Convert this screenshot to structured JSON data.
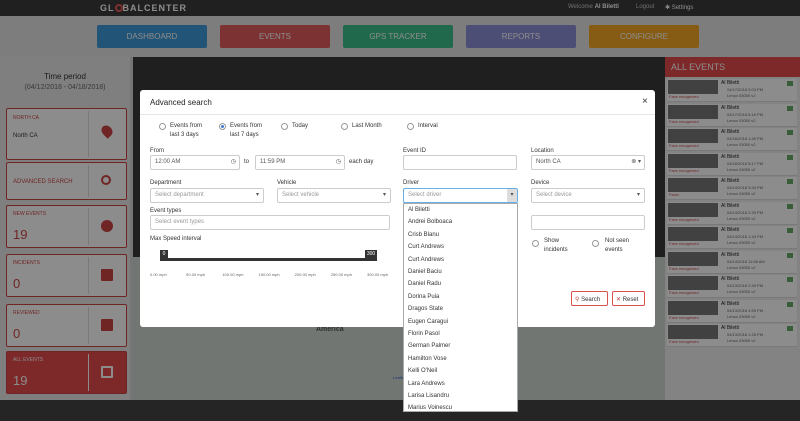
{
  "header": {
    "logo_left": "GL",
    "logo_right": "BALCENTER",
    "welcome": "Welcome",
    "user": "Al Biletti",
    "logout": "Logout",
    "settings": "Settings"
  },
  "nav": [
    "DASHBOARD",
    "EVENTS",
    "GPS TRACKER",
    "REPORTS",
    "CONFIGURE"
  ],
  "sidebar": {
    "time_period": "Time period",
    "range": "(04/12/2018 - 04/18/2018)",
    "location_title": "NORTH CA",
    "location_value": "North CA",
    "advanced_search": "ADVANCED SEARCH",
    "counters": [
      {
        "label": "NEW EVENTS",
        "value": "19"
      },
      {
        "label": "INCIDENTS",
        "value": "0"
      },
      {
        "label": "REVIEWED",
        "value": "0"
      },
      {
        "label": "ALL EVENTS",
        "value": "19"
      }
    ]
  },
  "map": {
    "label": "America",
    "attribution": "Leaflet"
  },
  "modal": {
    "title": "Advanced search",
    "periods": [
      {
        "line1": "Events from",
        "line2": "last 3 days"
      },
      {
        "line1": "Events from",
        "line2": "last 7 days"
      },
      {
        "line1": "Today"
      },
      {
        "line1": "Last Month"
      },
      {
        "line1": "Interval"
      }
    ],
    "from_label": "From",
    "from_value": "12:00 AM",
    "to_label": "to",
    "to_value": "11:59 PM",
    "each_day": "each day",
    "event_id_label": "Event ID",
    "location_label": "Location",
    "location_value": "North CA",
    "department_label": "Department",
    "department_placeholder": "Select department",
    "vehicle_label": "Vehicle",
    "vehicle_placeholder": "Select vehicle",
    "driver_label": "Driver",
    "driver_placeholder": "Select driver",
    "device_label": "Device",
    "device_placeholder": "Select device",
    "event_types_label": "Event types",
    "event_types_placeholder": "Select event types",
    "speed_label": "Max Speed interval",
    "speed_min": "0",
    "speed_max": "300",
    "speed_ticks": [
      "0.00 mph",
      "50.00 mph",
      "100.00 mph",
      "150.00 mph",
      "200.00 mph",
      "250.00 mph",
      "300.00 mph"
    ],
    "show_incidents": [
      "Show",
      "incidents"
    ],
    "not_seen": [
      "Not seen",
      "events"
    ],
    "search": "Search",
    "reset": "Reset"
  },
  "driver_options": [
    "Al Biletti",
    "Andrei Bolboaca",
    "Crisb Blanu",
    "Curt Andrews",
    "Curt Andrews",
    "Daniel Baciu",
    "Daniel Radu",
    "Dorina Puia",
    "Dragos State",
    "Eugen Caragui",
    "Florin Pasol",
    "German Palmer",
    "Hamilton Vose",
    "Kelli O'Neil",
    "Lara Andrews",
    "Larisa Lisandru",
    "Marius Voinescu"
  ],
  "events_panel": {
    "title": "ALL EVENTS",
    "items": [
      {
        "driver": "Al Biletti",
        "date": "04/17/2018 3:03 PM",
        "device": "Lenox 03050 v2",
        "badge": "Face recognized"
      },
      {
        "driver": "Al Biletti",
        "date": "04/17/2018 5:16 PM",
        "device": "Lenox 03050 v2",
        "badge": "Face recognized"
      },
      {
        "driver": "Al Biletti",
        "date": "04/16/2018 1:45 PM",
        "device": "Lenox 03050 v2",
        "badge": "Face recognized"
      },
      {
        "driver": "Al Biletti",
        "date": "04/16/2018 5:17 PM",
        "device": "Lenox 03050 v2",
        "badge": "Face recognized"
      },
      {
        "driver": "Al Biletti",
        "date": "04/14/2018 3:34 PM",
        "device": "Lenox 03050 v2",
        "badge": "Panic"
      },
      {
        "driver": "Al Biletti",
        "date": "04/14/2018 2:30 PM",
        "device": "Lenox 03050 v2",
        "badge": "Face recognized"
      },
      {
        "driver": "Al Biletti",
        "date": "04/14/2018 1:44 PM",
        "device": "Lenox 03050 v2",
        "badge": "Face recognized"
      },
      {
        "driver": "Al Biletti",
        "date": "04/14/2018 11:58 AM",
        "device": "Lenox 03050 v2",
        "badge": "Face recognized"
      },
      {
        "driver": "Al Biletti",
        "date": "04/13/2018 2:40 PM",
        "device": "Lenox 03050 v2",
        "badge": "Face recognized"
      },
      {
        "driver": "Al Biletti",
        "date": "04/13/2018 4:55 PM",
        "device": "Lenox 03050 v2",
        "badge": "Face recognized"
      },
      {
        "driver": "Al Biletti",
        "date": "04/13/2018 1:26 PM",
        "device": "Lenox 03050 v2",
        "badge": "Face recognized"
      }
    ]
  }
}
